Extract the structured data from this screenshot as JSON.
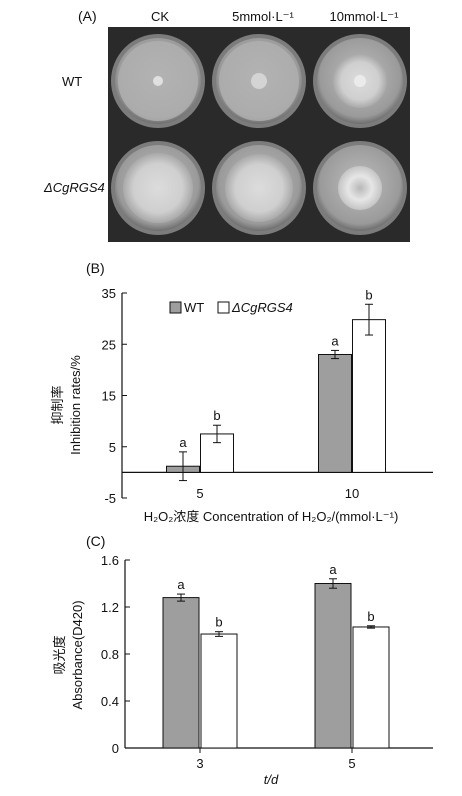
{
  "panel_a": {
    "label": "(A)",
    "columns": [
      "CK",
      "5mmol·L⁻¹",
      "10mmol·L⁻¹"
    ],
    "rows": [
      "WT",
      "ΔCgRGS4"
    ]
  },
  "chart_data": [
    {
      "panel": "(B)",
      "type": "bar",
      "ylabel_cn": "抑制率",
      "ylabel": "Inhibition rates/%",
      "xlabel_cn": "H₂O₂浓度",
      "xlabel": "Concentration of H₂O₂/(mmol·L⁻¹)",
      "categories": [
        "5",
        "10"
      ],
      "ylim": [
        -5,
        35
      ],
      "yticks": [
        -5,
        5,
        15,
        25,
        35
      ],
      "legend_position": "top",
      "series": [
        {
          "name": "WT",
          "color": "#9e9e9e",
          "values": [
            1.2,
            23.0
          ],
          "errors": [
            2.8,
            0.8
          ],
          "letters": [
            "a",
            "a"
          ]
        },
        {
          "name": "ΔCgRGS4",
          "color": "#ffffff",
          "values": [
            7.5,
            29.8
          ],
          "errors": [
            1.7,
            3.0
          ],
          "letters": [
            "b",
            "b"
          ]
        }
      ]
    },
    {
      "panel": "(C)",
      "type": "bar",
      "ylabel_cn": "吸光度",
      "ylabel": "Absorbance(D420)",
      "xlabel": "t/d",
      "categories": [
        "3",
        "5"
      ],
      "ylim": [
        0,
        1.6
      ],
      "yticks": [
        "0",
        "0.4",
        "0.8",
        "1.2",
        "1.6"
      ],
      "series": [
        {
          "name": "WT",
          "color": "#9e9e9e",
          "values": [
            1.28,
            1.4
          ],
          "errors": [
            0.03,
            0.04
          ],
          "letters": [
            "a",
            "a"
          ]
        },
        {
          "name": "ΔCgRGS4",
          "color": "#ffffff",
          "values": [
            0.97,
            1.03
          ],
          "errors": [
            0.02,
            0.01
          ],
          "letters": [
            "b",
            "b"
          ]
        }
      ]
    }
  ]
}
